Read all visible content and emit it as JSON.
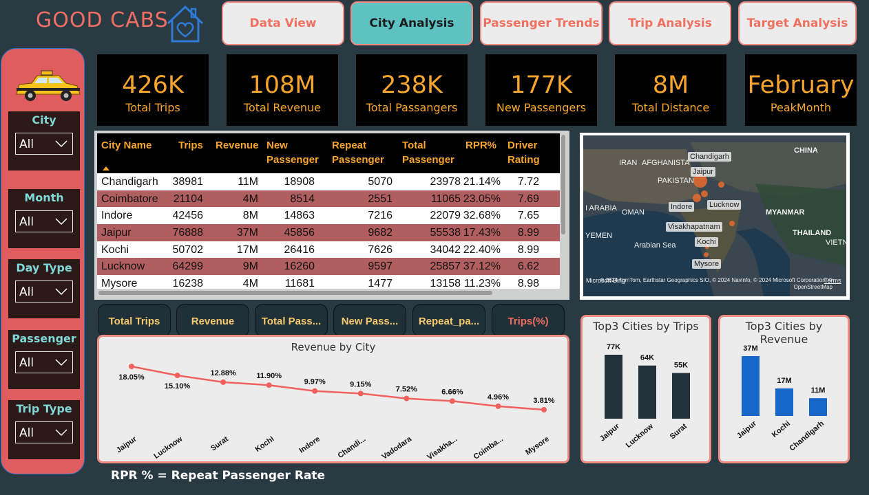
{
  "brand": {
    "title": "GOOD CABS"
  },
  "nav": [
    {
      "label": "Data View",
      "active": false
    },
    {
      "label": "City Analysis",
      "active": true
    },
    {
      "label": "Passenger Trends",
      "active": false
    },
    {
      "label": "Trip Analysis",
      "active": false
    },
    {
      "label": "Target Analysis",
      "active": false
    }
  ],
  "filters": [
    {
      "label": "City",
      "value": "All"
    },
    {
      "label": "Month",
      "value": "All"
    },
    {
      "label": "Day Type",
      "value": "All"
    },
    {
      "label": "Passenger",
      "value": "All"
    },
    {
      "label": "Trip Type",
      "value": "All"
    }
  ],
  "kpis": [
    {
      "value": "426K",
      "label": "Total Trips"
    },
    {
      "value": "108M",
      "label": "Total Revenue"
    },
    {
      "value": "238K",
      "label": "Total Passangers"
    },
    {
      "value": "177K",
      "label": "New Passengers"
    },
    {
      "value": "8M",
      "label": "Total Distance"
    },
    {
      "value": "February",
      "label": "PeakMonth"
    }
  ],
  "table": {
    "headers": [
      {
        "l1": "City Name",
        "l2": ""
      },
      {
        "l1": "Trips",
        "l2": ""
      },
      {
        "l1": "Revenue",
        "l2": ""
      },
      {
        "l1": "New",
        "l2": "Passenger"
      },
      {
        "l1": "Repeat",
        "l2": "Passenger"
      },
      {
        "l1": "Total",
        "l2": "Passenger"
      },
      {
        "l1": "RPR%",
        "l2": ""
      },
      {
        "l1": "Driver",
        "l2": "Rating"
      }
    ],
    "rows": [
      [
        "Chandigarh",
        "38981",
        "11M",
        "18908",
        "5070",
        "23978",
        "21.14%",
        "7.72"
      ],
      [
        "Coimbatore",
        "21104",
        "4M",
        "8514",
        "2551",
        "11065",
        "23.05%",
        "7.69"
      ],
      [
        "Indore",
        "42456",
        "8M",
        "14863",
        "7216",
        "22079",
        "32.68%",
        "7.65"
      ],
      [
        "Jaipur",
        "76888",
        "37M",
        "45856",
        "9682",
        "55538",
        "17.43%",
        "8.99"
      ],
      [
        "Kochi",
        "50702",
        "17M",
        "26416",
        "7626",
        "34042",
        "22.40%",
        "8.99"
      ],
      [
        "Lucknow",
        "64299",
        "9M",
        "16260",
        "9597",
        "25857",
        "37.12%",
        "6.62"
      ],
      [
        "Mysore",
        "16238",
        "4M",
        "11681",
        "1477",
        "13158",
        "11.23%",
        "8.98"
      ]
    ]
  },
  "map": {
    "regions": [
      "CHINA",
      "IRAN",
      "AFGHANISTA",
      "PAKISTAN",
      "OMAN",
      "I ARABIA",
      "YEMEN",
      "Arabian Sea",
      "MYANMAR",
      "THAILAND",
      "VIETNAI"
    ],
    "cities": [
      "Chandigarh",
      "Jaipur",
      "Indore",
      "Lucknow",
      "Visakhapatnam",
      "Kochi",
      "Mysore"
    ],
    "attribution": "© 2024 TomTom, Earthstar Geographics SIO, © 2024 Navinfo, © 2024 Microsoft Corporation, © OpenStreetMap",
    "bing": "Microsoft Bing",
    "terms": "Terms"
  },
  "metric_tabs": [
    {
      "label": "Total Trips",
      "active": false
    },
    {
      "label": "Revenue",
      "active": false
    },
    {
      "label": "Total Pass...",
      "active": false
    },
    {
      "label": "New Pass...",
      "active": false
    },
    {
      "label": "Repeat_pa...",
      "active": false
    },
    {
      "label": "Trips(%)",
      "active": true
    }
  ],
  "chart_data": [
    {
      "type": "line",
      "title": "Revenue by City",
      "categories": [
        "Jaipur",
        "Lucknow",
        "Surat",
        "Kochi",
        "Indore",
        "Chandi...",
        "Vadodara",
        "Visakha...",
        "Coimba...",
        "Mysore"
      ],
      "values": [
        18.05,
        15.1,
        12.88,
        11.9,
        9.97,
        9.15,
        7.52,
        6.66,
        4.96,
        3.81
      ],
      "labels": [
        "18.05%",
        "15.10%",
        "12.88%",
        "11.90%",
        "9.97%",
        "9.15%",
        "7.52%",
        "6.66%",
        "4.96%",
        "3.81%"
      ],
      "color": "#f0615e"
    },
    {
      "type": "bar",
      "title": "Top3 Cities by Trips",
      "categories": [
        "Jaipur",
        "Lucknow",
        "Surat"
      ],
      "values": [
        77,
        64,
        55
      ],
      "labels": [
        "77K",
        "64K",
        "55K"
      ],
      "color": "#223039"
    },
    {
      "type": "bar",
      "title": "Top3 Cities by Revenue",
      "categories": [
        "Jaipur",
        "Kochi",
        "Chandigarh"
      ],
      "values": [
        37,
        17,
        11
      ],
      "labels": [
        "37M",
        "17M",
        "11M"
      ],
      "color": "#1667c9"
    }
  ],
  "footnote": "RPR % = Repeat Passenger Rate"
}
